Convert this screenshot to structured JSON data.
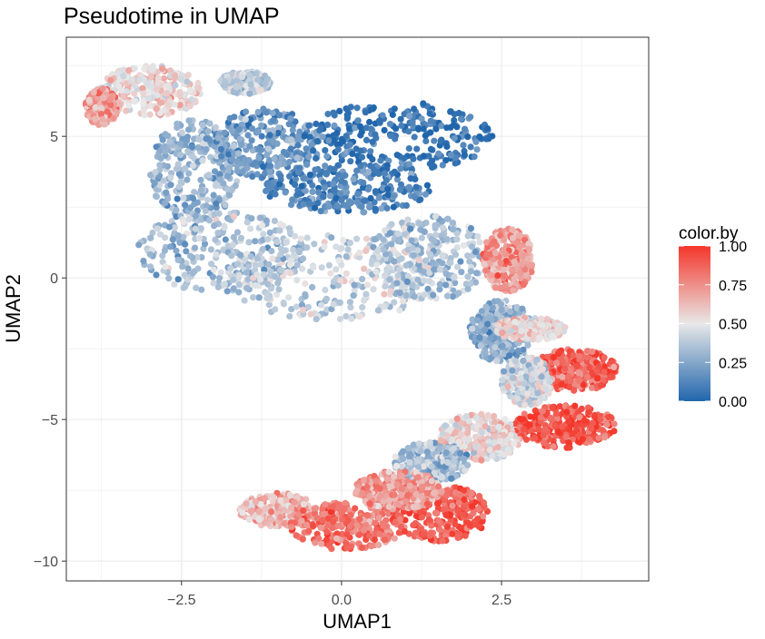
{
  "chart_data": {
    "type": "scatter",
    "title": "Pseudotime in UMAP",
    "xlabel": "UMAP1",
    "ylabel": "UMAP2",
    "xlim": [
      -4.3,
      4.8
    ],
    "ylim": [
      -10.7,
      8.5
    ],
    "x_ticks": [
      -2.5,
      0.0,
      2.5
    ],
    "x_tick_labels": [
      "−2.5",
      "0.0",
      "2.5"
    ],
    "y_ticks": [
      -10,
      -5,
      0,
      5
    ],
    "y_tick_labels": [
      "−10",
      "−5",
      "0",
      "5"
    ],
    "grid": true,
    "color_variable": "color.by",
    "color_scale": {
      "low": "#2166ac",
      "mid": "#e8e8e8",
      "high": "#f4362a",
      "range": [
        0,
        1
      ],
      "ticks": [
        0,
        0.25,
        0.5,
        0.75,
        1
      ],
      "tick_labels": [
        "0.00",
        "0.25",
        "0.50",
        "0.75",
        "1.00"
      ]
    },
    "legend_position": "right",
    "clusters": [
      {
        "x": [
          -3.8,
          -2.2
        ],
        "y": [
          5.7,
          7.5
        ],
        "value": 0.55
      },
      {
        "x": [
          -1.9,
          -1.1
        ],
        "y": [
          6.5,
          7.3
        ],
        "value": 0.4
      },
      {
        "x": [
          -4.0,
          -3.5
        ],
        "y": [
          5.4,
          6.7
        ],
        "value": 0.7
      },
      {
        "x": [
          -3.0,
          -1.6
        ],
        "y": [
          2.0,
          5.6
        ],
        "value": 0.3
      },
      {
        "x": [
          -2.0,
          -0.3
        ],
        "y": [
          3.5,
          6.0
        ],
        "value": 0.2
      },
      {
        "x": [
          -0.6,
          2.4
        ],
        "y": [
          3.8,
          6.2
        ],
        "value": 0.05
      },
      {
        "x": [
          -1.2,
          1.4
        ],
        "y": [
          2.3,
          4.0
        ],
        "value": 0.12
      },
      {
        "x": [
          -3.2,
          -0.6
        ],
        "y": [
          -0.5,
          2.4
        ],
        "value": 0.35
      },
      {
        "x": [
          -1.8,
          1.5
        ],
        "y": [
          -1.5,
          1.5
        ],
        "value": 0.42
      },
      {
        "x": [
          0.4,
          2.3
        ],
        "y": [
          -0.8,
          2.2
        ],
        "value": 0.35
      },
      {
        "x": [
          2.2,
          3.0
        ],
        "y": [
          -0.5,
          1.8
        ],
        "value": 0.72
      },
      {
        "x": [
          2.0,
          3.0
        ],
        "y": [
          -3.0,
          -0.8
        ],
        "value": 0.3
      },
      {
        "x": [
          2.4,
          3.5
        ],
        "y": [
          -2.2,
          -1.4
        ],
        "value": 0.55
      },
      {
        "x": [
          3.0,
          4.3
        ],
        "y": [
          -4.0,
          -2.5
        ],
        "value": 0.88
      },
      {
        "x": [
          2.5,
          3.3
        ],
        "y": [
          -4.5,
          -2.8
        ],
        "value": 0.45
      },
      {
        "x": [
          2.7,
          4.3
        ],
        "y": [
          -6.0,
          -4.5
        ],
        "value": 0.92
      },
      {
        "x": [
          1.5,
          2.8
        ],
        "y": [
          -6.5,
          -4.8
        ],
        "value": 0.55
      },
      {
        "x": [
          0.8,
          2.0
        ],
        "y": [
          -7.2,
          -5.8
        ],
        "value": 0.35
      },
      {
        "x": [
          -1.6,
          -0.4
        ],
        "y": [
          -8.8,
          -7.6
        ],
        "value": 0.62
      },
      {
        "x": [
          -0.8,
          1.0
        ],
        "y": [
          -9.6,
          -7.9
        ],
        "value": 0.82
      },
      {
        "x": [
          0.8,
          2.3
        ],
        "y": [
          -9.3,
          -7.3
        ],
        "value": 0.9
      },
      {
        "x": [
          0.2,
          1.6
        ],
        "y": [
          -8.2,
          -6.8
        ],
        "value": 0.7
      }
    ],
    "approx_point_count": 6000
  }
}
